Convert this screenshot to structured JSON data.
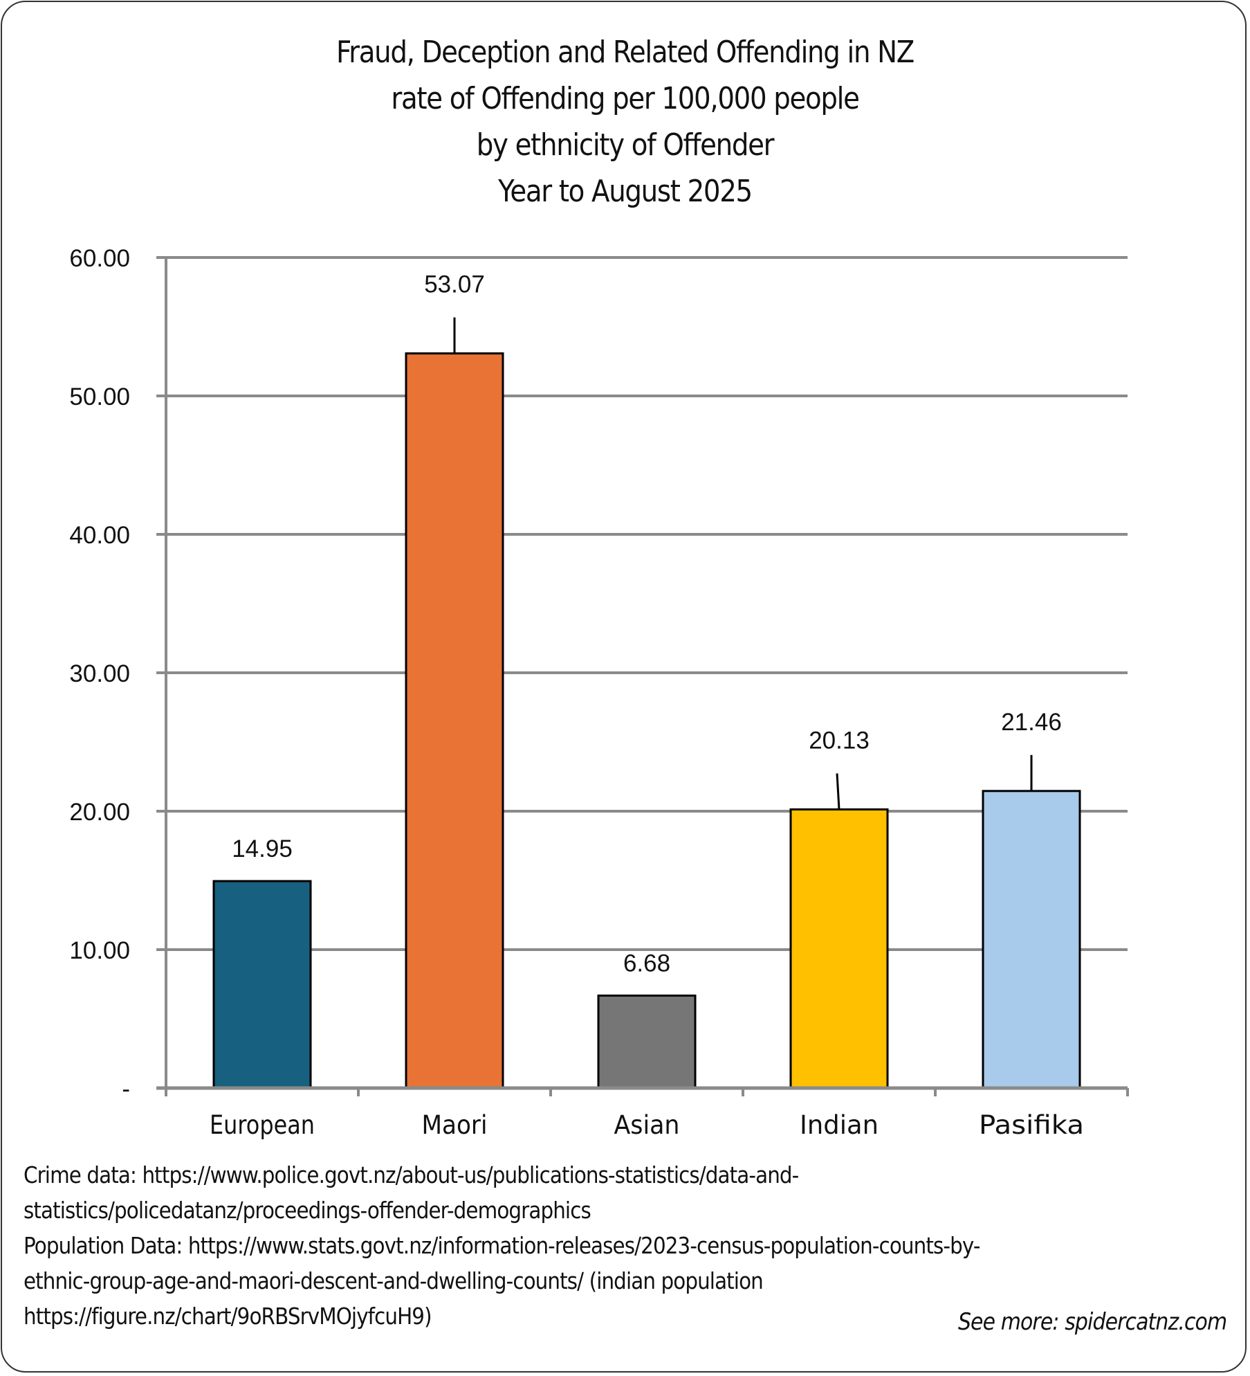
{
  "chart_data": {
    "type": "bar",
    "title": [
      "Fraud, Deception and Related Offending in NZ",
      "rate of Offending per 100,000 people",
      "by ethnicity of Offender",
      "Year to August 2025"
    ],
    "xlabel": "",
    "ylabel": "",
    "ylim": [
      0,
      60
    ],
    "yticks": [
      0,
      10,
      20,
      30,
      40,
      50,
      60
    ],
    "ytick_labels": [
      "-",
      "10.00",
      "20.00",
      "30.00",
      "40.00",
      "50.00",
      "60.00"
    ],
    "grid": true,
    "legend": "none",
    "categories": [
      "European",
      "Maori",
      "Asian",
      "Indian",
      "Pasifika"
    ],
    "values": [
      14.95,
      53.07,
      6.68,
      20.13,
      21.46
    ],
    "data_labels": [
      "14.95",
      "53.07",
      "6.68",
      "20.13",
      "21.46"
    ],
    "colors": [
      "#17607f",
      "#e87334",
      "#767676",
      "#ffc000",
      "#a8caeb"
    ]
  },
  "notes": {
    "lines": [
      "Crime data: https://www.police.govt.nz/about-us/publications-statistics/data-and-",
      "statistics/policedatanz/proceedings-offender-demographics",
      "Population Data: https://www.stats.govt.nz/information-releases/2023-census-population-counts-by-",
      "ethnic-group-age-and-maori-descent-and-dwelling-counts/ (indian population",
      "https://figure.nz/chart/9oRBSrvMOjyfcuH9)"
    ],
    "see_more": "See more: spidercatnz.com"
  }
}
